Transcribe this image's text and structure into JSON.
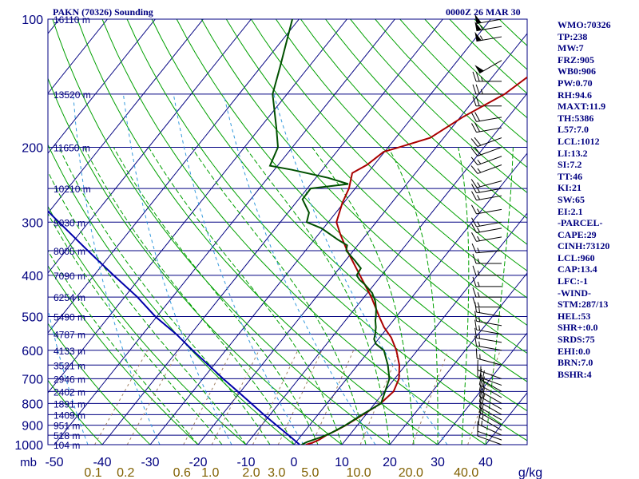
{
  "header": {
    "station_title": "PAKN (70326) Sounding",
    "time_label": "0000Z 26 MAR 30"
  },
  "colors": {
    "frame": "#000080",
    "isobar": "#000080",
    "isotherm": "#000080",
    "dry_adiabat": "#00a000",
    "moist_adiabat": "#00a000",
    "mixing_ratio": "#a08060",
    "temperature": "#aa0000",
    "dewpoint": "#005000",
    "parcel": "#0000aa",
    "dashed_blue": "#3399dd",
    "axis_text": "#000080",
    "mixing_text": "#806000",
    "wind_barb": "#000000"
  },
  "stats": [
    "WMO:70326",
    "TP:238",
    "MW:7",
    "FRZ:905",
    "WB0:906",
    "PW:0.70",
    "RH:94.6",
    "MAXT:11.9",
    "TH:5386",
    "L57:7.0",
    "LCL:1012",
    "LI:13.2",
    "SI:7.2",
    "TT:46",
    "KI:21",
    "SW:65",
    "EI:2.1",
    "-PARCEL-",
    "CAPE:29",
    "CINH:73120",
    "LCL:960",
    "CAP:13.4",
    "LFC:-1",
    "-WIND-",
    "STM:287/13",
    "HEL:53",
    "SHR+:0.0",
    "SRDS:75",
    "EHI:0.0",
    "BRN:7.0",
    "BSHR:4"
  ],
  "chart_data": {
    "type": "line",
    "title": "PAKN (70326) Sounding",
    "subtitle": "0000Z 26 MAR 30",
    "xlabel": "",
    "ylabel": "mb",
    "y_scale": "log",
    "ylim": [
      1000,
      100
    ],
    "xlim": [
      -50,
      50
    ],
    "pressure_ticks": [
      {
        "p": 100,
        "label": "100"
      },
      {
        "p": 200,
        "label": "200"
      },
      {
        "p": 300,
        "label": "300"
      },
      {
        "p": 400,
        "label": "400"
      },
      {
        "p": 500,
        "label": "500"
      },
      {
        "p": 600,
        "label": "600"
      },
      {
        "p": 700,
        "label": "700"
      },
      {
        "p": 800,
        "label": "800"
      },
      {
        "p": 900,
        "label": "900"
      },
      {
        "p": 1000,
        "label": "1000"
      }
    ],
    "temperature_ticks": [
      {
        "t": -50,
        "label": "-50"
      },
      {
        "t": -40,
        "label": "-40"
      },
      {
        "t": -30,
        "label": "-30"
      },
      {
        "t": -20,
        "label": "-20"
      },
      {
        "t": -10,
        "label": "-10"
      },
      {
        "t": 0,
        "label": "0"
      },
      {
        "t": 10,
        "label": "10"
      },
      {
        "t": 20,
        "label": "20"
      },
      {
        "t": 30,
        "label": "30"
      },
      {
        "t": 40,
        "label": "40"
      }
    ],
    "y_axis_unit_label": "mb",
    "mixing_ratio_ticks": [
      {
        "w": 0.1,
        "label": "0.1"
      },
      {
        "w": 0.2,
        "label": "0.2"
      },
      {
        "w": 0.6,
        "label": "0.6"
      },
      {
        "w": 1.0,
        "label": "1.0"
      },
      {
        "w": 2.0,
        "label": "2.0"
      },
      {
        "w": 3.0,
        "label": "3.0"
      },
      {
        "w": 5.0,
        "label": "5.0"
      },
      {
        "w": 10.0,
        "label": "10.0"
      },
      {
        "w": 20.0,
        "label": "20.0"
      },
      {
        "w": 40.0,
        "label": "40.0"
      }
    ],
    "mixing_ratio_unit_label": "g/kg",
    "height_labels": [
      {
        "p": 100,
        "label": "16110 m"
      },
      {
        "p": 150,
        "label": "13520 m"
      },
      {
        "p": 200,
        "label": "11650 m"
      },
      {
        "p": 250,
        "label": "10210 m"
      },
      {
        "p": 300,
        "label": "9030 m"
      },
      {
        "p": 350,
        "label": "8005 m"
      },
      {
        "p": 400,
        "label": "7090 m"
      },
      {
        "p": 450,
        "label": "6254 m"
      },
      {
        "p": 500,
        "label": "5490 m"
      },
      {
        "p": 550,
        "label": "4787 m"
      },
      {
        "p": 600,
        "label": "4133 m"
      },
      {
        "p": 650,
        "label": "3521 m"
      },
      {
        "p": 700,
        "label": "2946 m"
      },
      {
        "p": 750,
        "label": "2402 m"
      },
      {
        "p": 800,
        "label": "1891 m"
      },
      {
        "p": 850,
        "label": "1409 m"
      },
      {
        "p": 900,
        "label": "951 m"
      },
      {
        "p": 950,
        "label": "518 m"
      },
      {
        "p": 1000,
        "label": "104 m"
      }
    ],
    "series": [
      {
        "key": "temperature",
        "points": [
          [
            1000,
            2.5
          ],
          [
            990,
            3.5
          ],
          [
            975,
            4.4
          ],
          [
            950,
            5.2
          ],
          [
            925,
            6.5
          ],
          [
            900,
            7.6
          ],
          [
            850,
            9.4
          ],
          [
            800,
            11.2
          ],
          [
            750,
            11.9
          ],
          [
            700,
            10.9
          ],
          [
            650,
            8.7
          ],
          [
            600,
            5.6
          ],
          [
            560,
            2.4
          ],
          [
            530,
            -0.8
          ],
          [
            500,
            -3.6
          ],
          [
            450,
            -8.5
          ],
          [
            400,
            -14.5
          ],
          [
            350,
            -21.3
          ],
          [
            320,
            -25.5
          ],
          [
            300,
            -28.3
          ],
          [
            270,
            -30.3
          ],
          [
            250,
            -31.3
          ],
          [
            230,
            -33.2
          ],
          [
            220,
            -31.5
          ],
          [
            205,
            -30.2
          ],
          [
            200,
            -27.7
          ],
          [
            190,
            -22.8
          ],
          [
            170,
            -19.5
          ],
          [
            150,
            -14.6
          ],
          [
            130,
            -11.6
          ],
          [
            115,
            -7.8
          ],
          [
            100,
            -5.5
          ]
        ]
      },
      {
        "key": "dewpoint",
        "points": [
          [
            1000,
            1.6
          ],
          [
            985,
            2.3
          ],
          [
            960,
            4.4
          ],
          [
            940,
            5.7
          ],
          [
            900,
            7.5
          ],
          [
            850,
            9.2
          ],
          [
            800,
            11.3
          ],
          [
            700,
            8.9
          ],
          [
            650,
            6.3
          ],
          [
            600,
            3.0
          ],
          [
            580,
            0.3
          ],
          [
            565,
            -0.9
          ],
          [
            550,
            -1.5
          ],
          [
            530,
            -2.5
          ],
          [
            510,
            -3.8
          ],
          [
            500,
            -4.3
          ],
          [
            480,
            -5.5
          ],
          [
            460,
            -7.0
          ],
          [
            440,
            -9.0
          ],
          [
            420,
            -12.0
          ],
          [
            410,
            -13.8
          ],
          [
            400,
            -15.2
          ],
          [
            385,
            -15.5
          ],
          [
            370,
            -17.9
          ],
          [
            350,
            -21.5
          ],
          [
            340,
            -22.2
          ],
          [
            330,
            -25.0
          ],
          [
            310,
            -30.4
          ],
          [
            300,
            -34.5
          ],
          [
            285,
            -35.6
          ],
          [
            265,
            -39.2
          ],
          [
            250,
            -39.3
          ],
          [
            244,
            -32.2
          ],
          [
            236,
            -37.4
          ],
          [
            226,
            -46.3
          ],
          [
            221,
            -51.6
          ],
          [
            200,
            -53.0
          ],
          [
            180,
            -56.6
          ],
          [
            150,
            -63.0
          ],
          [
            130,
            -65.9
          ],
          [
            100,
            -71.4
          ]
        ]
      },
      {
        "key": "parcel",
        "points": [
          [
            1000,
            1.2
          ],
          [
            950,
            -2.7
          ],
          [
            900,
            -6.9
          ],
          [
            850,
            -11.3
          ],
          [
            800,
            -15.8
          ],
          [
            750,
            -20.6
          ],
          [
            700,
            -25.8
          ],
          [
            650,
            -31.1
          ],
          [
            600,
            -36.9
          ],
          [
            550,
            -43.0
          ],
          [
            500,
            -50.3
          ],
          [
            450,
            -57.3
          ],
          [
            400,
            -65.9
          ],
          [
            350,
            -75.4
          ],
          [
            300,
            -86.2
          ],
          [
            250,
            -98.9
          ],
          [
            200,
            -112.0
          ],
          [
            150,
            -131.0
          ],
          [
            100,
            -158.0
          ]
        ]
      }
    ],
    "wind_barbs": [
      {
        "p": 1000,
        "dir": 290,
        "spd": 10
      },
      {
        "p": 975,
        "dir": 290,
        "spd": 10
      },
      {
        "p": 950,
        "dir": 295,
        "spd": 15
      },
      {
        "p": 925,
        "dir": 300,
        "spd": 15
      },
      {
        "p": 900,
        "dir": 300,
        "spd": 15
      },
      {
        "p": 875,
        "dir": 300,
        "spd": 15
      },
      {
        "p": 850,
        "dir": 300,
        "spd": 20
      },
      {
        "p": 825,
        "dir": 300,
        "spd": 20
      },
      {
        "p": 800,
        "dir": 300,
        "spd": 20
      },
      {
        "p": 775,
        "dir": 300,
        "spd": 20
      },
      {
        "p": 750,
        "dir": 300,
        "spd": 20
      },
      {
        "p": 725,
        "dir": 290,
        "spd": 15
      },
      {
        "p": 700,
        "dir": 290,
        "spd": 15
      },
      {
        "p": 650,
        "dir": 285,
        "spd": 15
      },
      {
        "p": 600,
        "dir": 280,
        "spd": 15
      },
      {
        "p": 575,
        "dir": 280,
        "spd": 15
      },
      {
        "p": 550,
        "dir": 280,
        "spd": 15
      },
      {
        "p": 525,
        "dir": 280,
        "spd": 15
      },
      {
        "p": 500,
        "dir": 280,
        "spd": 15
      },
      {
        "p": 475,
        "dir": 270,
        "spd": 15
      },
      {
        "p": 450,
        "dir": 270,
        "spd": 15
      },
      {
        "p": 425,
        "dir": 270,
        "spd": 15
      },
      {
        "p": 400,
        "dir": 270,
        "spd": 15
      },
      {
        "p": 375,
        "dir": 270,
        "spd": 15
      },
      {
        "p": 350,
        "dir": 265,
        "spd": 15
      },
      {
        "p": 325,
        "dir": 260,
        "spd": 15
      },
      {
        "p": 310,
        "dir": 260,
        "spd": 15
      },
      {
        "p": 300,
        "dir": 260,
        "spd": 15
      },
      {
        "p": 280,
        "dir": 260,
        "spd": 15
      },
      {
        "p": 260,
        "dir": 260,
        "spd": 15
      },
      {
        "p": 250,
        "dir": 260,
        "spd": 15
      },
      {
        "p": 240,
        "dir": 255,
        "spd": 15
      },
      {
        "p": 220,
        "dir": 250,
        "spd": 15
      },
      {
        "p": 210,
        "dir": 250,
        "spd": 15
      },
      {
        "p": 200,
        "dir": 250,
        "spd": 20
      },
      {
        "p": 190,
        "dir": 250,
        "spd": 20
      },
      {
        "p": 180,
        "dir": 260,
        "spd": 20
      },
      {
        "p": 170,
        "dir": 260,
        "spd": 20
      },
      {
        "p": 160,
        "dir": 270,
        "spd": 20
      },
      {
        "p": 150,
        "dir": 270,
        "spd": 25
      },
      {
        "p": 140,
        "dir": 270,
        "spd": 25
      },
      {
        "p": 125,
        "dir": 240,
        "spd": 50
      },
      {
        "p": 110,
        "dir": 260,
        "spd": 55
      },
      {
        "p": 104,
        "dir": 260,
        "spd": 55
      },
      {
        "p": 100,
        "dir": 260,
        "spd": 50
      }
    ],
    "grid": true
  }
}
